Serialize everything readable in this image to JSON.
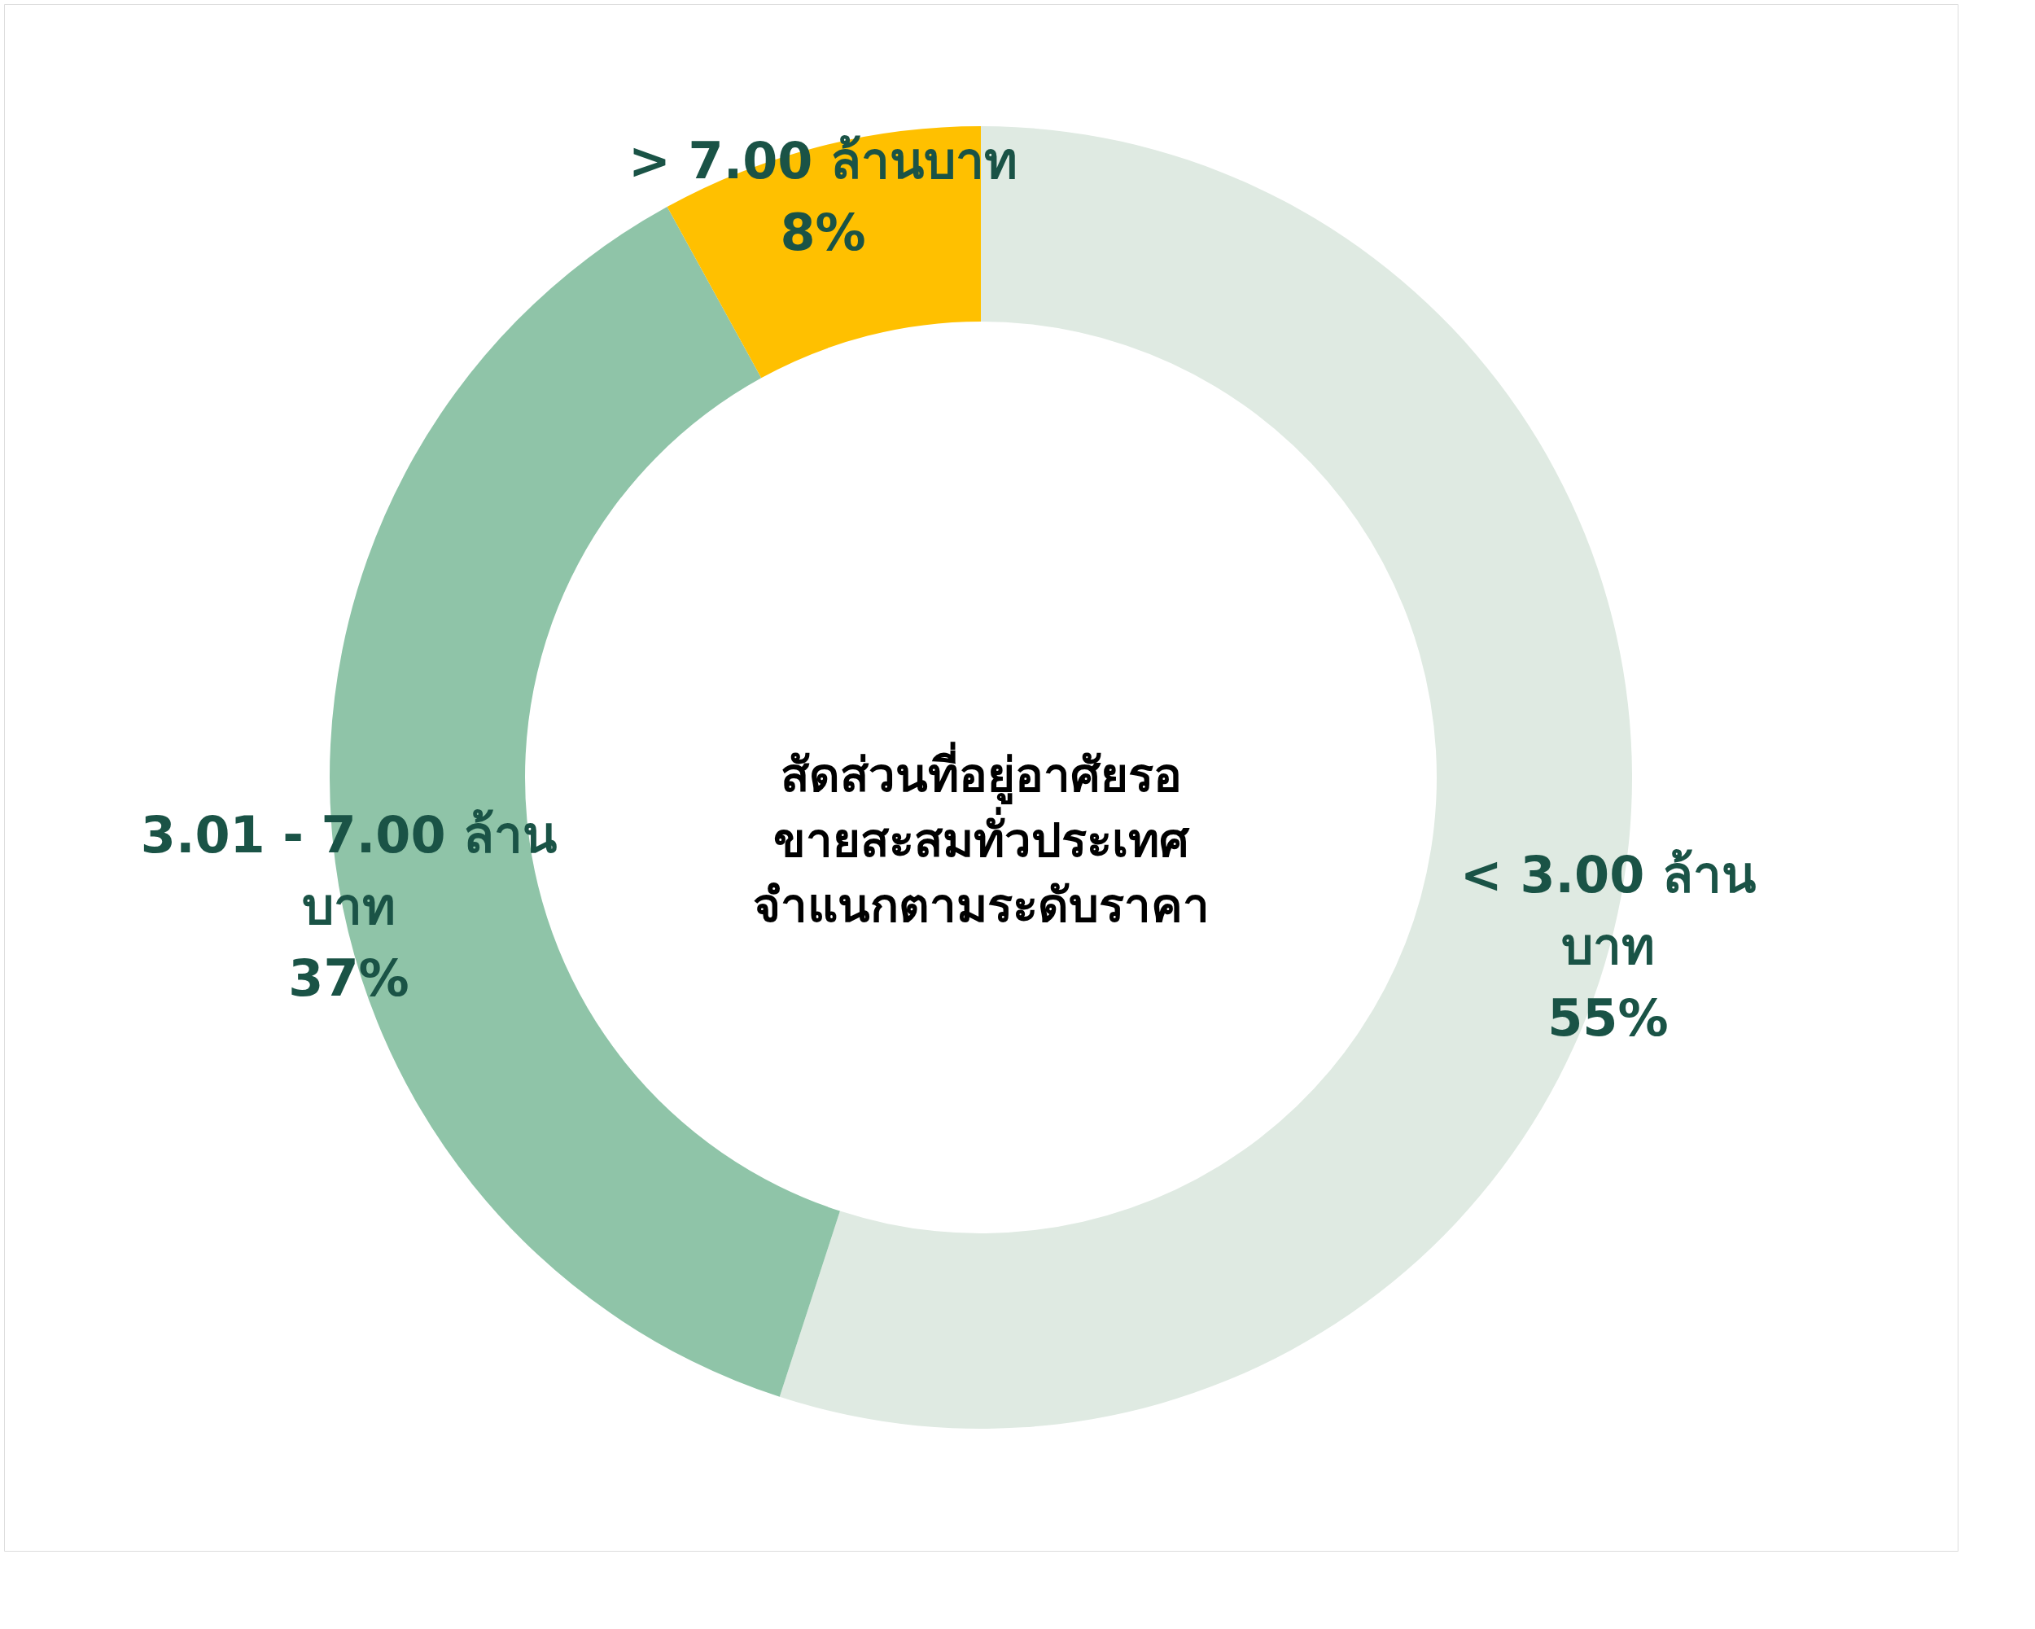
{
  "chart_data": {
    "type": "donut",
    "title": "สัดส่วนที่อยู่อาศัยรอ\nขายสะสมทั่วประเทศ\nจำแนกตามระดับราคา",
    "categories": [
      "< 3.00 ล้าน\nบาท",
      "3.01 - 7.00 ล้าน\nบาท",
      "> 7.00  ล้านบาท"
    ],
    "values": [
      55,
      37,
      8
    ],
    "colors": [
      "#dfeae2",
      "#8fc4a8",
      "#ffc000"
    ],
    "value_labels": [
      "55%",
      "37%",
      "8%"
    ]
  }
}
